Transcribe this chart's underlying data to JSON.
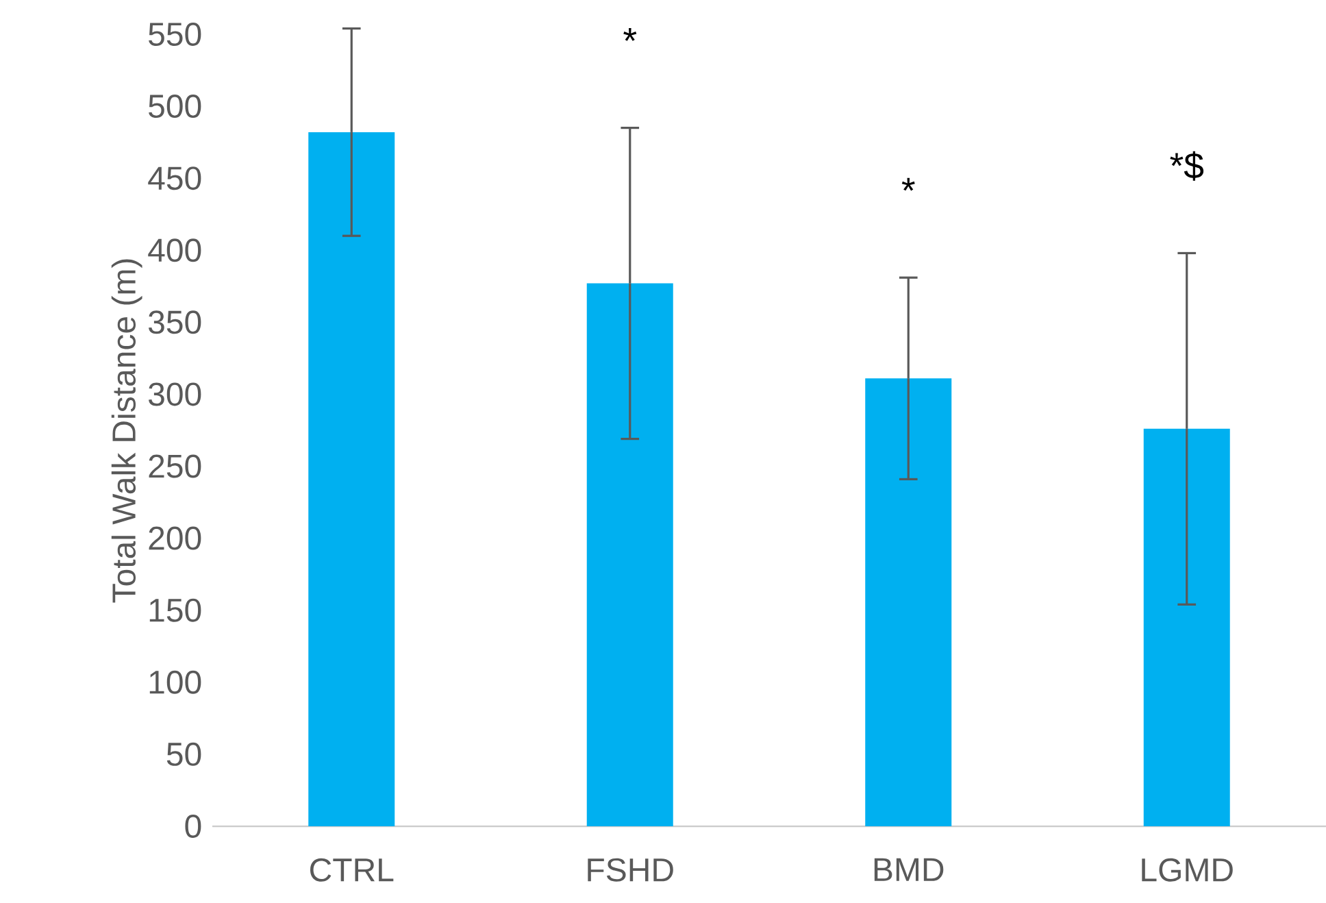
{
  "chart_data": {
    "type": "bar",
    "ylabel": "Total Walk Distance (m)",
    "categories": [
      "CTRL",
      "FSHD",
      "BMD",
      "LGMD"
    ],
    "values": [
      482,
      377,
      311,
      276
    ],
    "errors": [
      72,
      108,
      70,
      122
    ],
    "color": "#00b0f0",
    "ylim": [
      0,
      550
    ],
    "yticks": [
      0,
      50,
      100,
      150,
      200,
      250,
      300,
      350,
      400,
      450,
      500,
      550
    ],
    "grid": false,
    "annotations": [
      "*",
      "*",
      "*$"
    ]
  }
}
